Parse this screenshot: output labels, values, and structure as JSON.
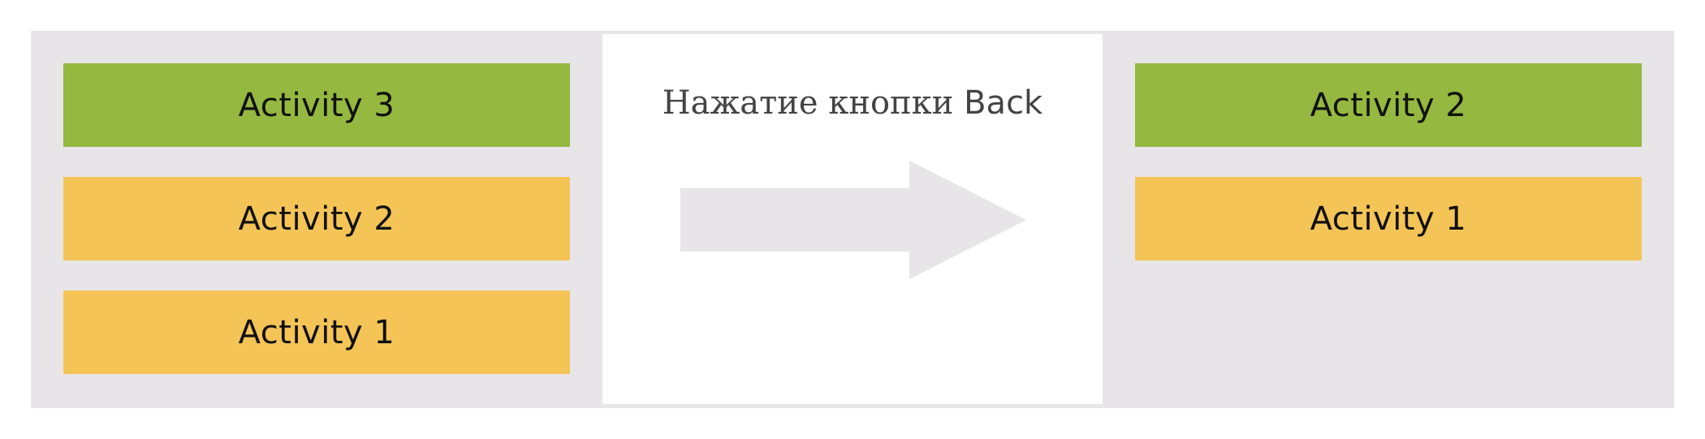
{
  "left_stack": {
    "items": [
      {
        "label": "Activity 3",
        "color": "#94b840"
      },
      {
        "label": "Activity 2",
        "color": "#f4c457"
      },
      {
        "label": "Activity 1",
        "color": "#f4c457"
      }
    ]
  },
  "transition": {
    "label_prefix": "Нажатие кнопки",
    "label_button": "Back",
    "arrow_color": "#e8e5e8",
    "icon": "right-arrow-icon"
  },
  "right_stack": {
    "items": [
      {
        "label": "Activity 2",
        "color": "#94b840"
      },
      {
        "label": "Activity 1",
        "color": "#f4c457"
      }
    ]
  },
  "colors": {
    "background": "#e8e5e8",
    "active": "#94b840",
    "inactive": "#f4c457"
  }
}
